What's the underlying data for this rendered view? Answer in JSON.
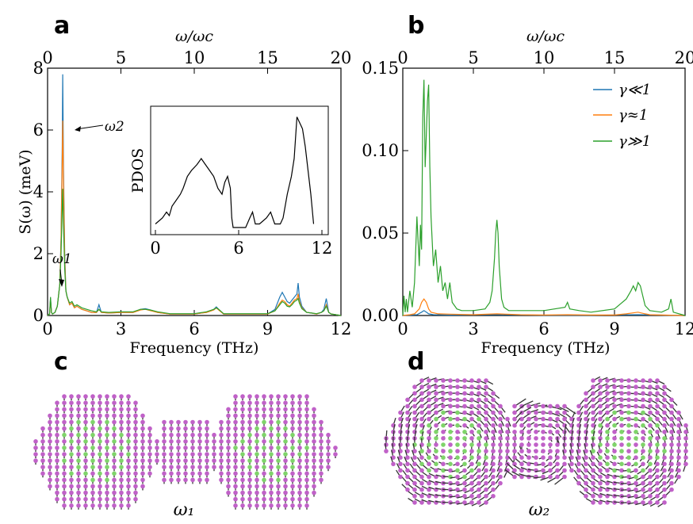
{
  "panels": {
    "a": "a",
    "b": "b",
    "c": "c",
    "d": "d"
  },
  "colors": {
    "gamma_small": "#1f77b4",
    "gamma_one": "#ff7f0e",
    "gamma_large": "#2ca02c",
    "atom_magenta": "#c061c8",
    "atom_green": "#7fd46a",
    "arrow_dark": "#333333"
  },
  "chart_data": [
    {
      "type": "line",
      "panel": "a",
      "xlabel": "Frequency (THz)",
      "ylabel": "S(ω) (meV)",
      "top_xlabel": "ω/ωc",
      "xlim": [
        0,
        12
      ],
      "ylim": [
        0,
        8
      ],
      "xticks": [
        0,
        3,
        6,
        9,
        12
      ],
      "yticks": [
        0,
        2,
        4,
        6,
        8
      ],
      "top_xticks": [
        0,
        5,
        10,
        15,
        20
      ],
      "top_xlim": [
        0,
        20
      ],
      "annotations": [
        {
          "text": "ω2",
          "x": 0.62,
          "y": 6.2
        },
        {
          "text": "ω1",
          "x": 0.12,
          "y": 0.6
        }
      ],
      "series": [
        {
          "name": "γ≪1",
          "x": [
            0,
            0.08,
            0.12,
            0.16,
            0.2,
            0.3,
            0.4,
            0.5,
            0.55,
            0.6,
            0.62,
            0.65,
            0.7,
            0.75,
            0.8,
            0.9,
            1.0,
            1.1,
            1.2,
            1.4,
            1.6,
            1.8,
            2.0,
            2.1,
            2.2,
            2.5,
            3.0,
            3.5,
            3.8,
            4.0,
            4.2,
            4.5,
            5.0,
            5.5,
            6.0,
            6.5,
            6.8,
            6.9,
            7.0,
            7.2,
            7.5,
            8.0,
            8.5,
            9.0,
            9.3,
            9.5,
            9.6,
            9.7,
            9.8,
            9.9,
            10.0,
            10.1,
            10.2,
            10.25,
            10.3,
            10.4,
            10.6,
            10.8,
            11.0,
            11.2,
            11.3,
            11.4,
            11.5,
            11.6,
            12.0
          ],
          "y": [
            0,
            0.05,
            0.55,
            0.1,
            0.05,
            0.1,
            0.3,
            1.0,
            2.5,
            5.5,
            7.8,
            5.0,
            2.0,
            0.8,
            0.6,
            0.35,
            0.4,
            0.25,
            0.3,
            0.2,
            0.15,
            0.1,
            0.1,
            0.35,
            0.1,
            0.08,
            0.1,
            0.1,
            0.2,
            0.22,
            0.18,
            0.1,
            0.05,
            0.05,
            0.05,
            0.1,
            0.2,
            0.28,
            0.2,
            0.05,
            0.05,
            0.05,
            0.05,
            0.05,
            0.2,
            0.6,
            0.75,
            0.6,
            0.45,
            0.4,
            0.5,
            0.6,
            0.7,
            1.05,
            0.6,
            0.3,
            0.1,
            0.08,
            0.05,
            0.1,
            0.2,
            0.55,
            0.1,
            0.05,
            0.0
          ]
        },
        {
          "name": "γ≈1",
          "x": [
            0,
            0.08,
            0.12,
            0.16,
            0.2,
            0.3,
            0.4,
            0.5,
            0.55,
            0.6,
            0.62,
            0.65,
            0.7,
            0.75,
            0.8,
            0.9,
            1.0,
            1.1,
            1.2,
            1.4,
            1.6,
            1.8,
            2.0,
            2.1,
            2.2,
            2.5,
            3.0,
            3.5,
            3.8,
            4.0,
            4.2,
            4.5,
            5.0,
            5.5,
            6.0,
            6.5,
            6.8,
            6.9,
            7.0,
            7.2,
            7.5,
            8.0,
            8.5,
            9.0,
            9.3,
            9.5,
            9.6,
            9.7,
            9.8,
            9.9,
            10.0,
            10.1,
            10.2,
            10.25,
            10.3,
            10.4,
            10.6,
            10.8,
            11.0,
            11.2,
            11.3,
            11.4,
            11.5,
            11.6,
            12.0
          ],
          "y": [
            0,
            0.05,
            0.5,
            0.1,
            0.05,
            0.1,
            0.3,
            1.0,
            2.4,
            5.0,
            6.3,
            4.5,
            1.8,
            0.8,
            0.6,
            0.35,
            0.4,
            0.25,
            0.3,
            0.2,
            0.15,
            0.1,
            0.1,
            0.2,
            0.1,
            0.08,
            0.1,
            0.1,
            0.18,
            0.2,
            0.16,
            0.1,
            0.05,
            0.05,
            0.05,
            0.1,
            0.18,
            0.25,
            0.18,
            0.05,
            0.05,
            0.05,
            0.05,
            0.05,
            0.15,
            0.4,
            0.5,
            0.45,
            0.35,
            0.3,
            0.4,
            0.5,
            0.55,
            0.7,
            0.45,
            0.25,
            0.1,
            0.08,
            0.05,
            0.1,
            0.15,
            0.35,
            0.1,
            0.05,
            0.0
          ]
        },
        {
          "name": "γ≫1",
          "x": [
            0,
            0.08,
            0.12,
            0.16,
            0.2,
            0.3,
            0.4,
            0.5,
            0.55,
            0.6,
            0.62,
            0.65,
            0.7,
            0.75,
            0.8,
            0.9,
            1.0,
            1.1,
            1.2,
            1.4,
            1.6,
            1.8,
            2.0,
            2.1,
            2.2,
            2.5,
            3.0,
            3.5,
            3.8,
            4.0,
            4.2,
            4.5,
            5.0,
            5.5,
            6.0,
            6.5,
            6.8,
            6.9,
            7.0,
            7.2,
            7.5,
            8.0,
            8.5,
            9.0,
            9.3,
            9.5,
            9.6,
            9.7,
            9.8,
            9.9,
            10.0,
            10.1,
            10.2,
            10.25,
            10.3,
            10.4,
            10.6,
            10.8,
            11.0,
            11.2,
            11.3,
            11.4,
            11.5,
            11.6,
            12.0
          ],
          "y": [
            0,
            0.05,
            0.6,
            0.1,
            0.05,
            0.1,
            0.3,
            1.0,
            2.0,
            3.5,
            4.1,
            3.0,
            1.5,
            0.8,
            0.6,
            0.4,
            0.45,
            0.3,
            0.35,
            0.25,
            0.2,
            0.15,
            0.12,
            0.2,
            0.12,
            0.1,
            0.12,
            0.12,
            0.2,
            0.2,
            0.18,
            0.12,
            0.06,
            0.06,
            0.06,
            0.12,
            0.2,
            0.25,
            0.2,
            0.06,
            0.06,
            0.06,
            0.06,
            0.06,
            0.15,
            0.35,
            0.45,
            0.4,
            0.3,
            0.28,
            0.35,
            0.45,
            0.5,
            0.55,
            0.4,
            0.22,
            0.1,
            0.08,
            0.06,
            0.1,
            0.15,
            0.3,
            0.1,
            0.05,
            0.0
          ]
        }
      ],
      "inset": {
        "ylabel": "PDOS",
        "xticks": [
          0,
          6,
          12
        ],
        "xlim": [
          0,
          12
        ],
        "x": [
          0,
          0.5,
          0.8,
          1.0,
          1.2,
          1.5,
          1.8,
          2.0,
          2.3,
          2.6,
          3.0,
          3.3,
          3.6,
          3.9,
          4.2,
          4.5,
          4.8,
          5.0,
          5.2,
          5.4,
          5.5,
          5.6,
          6.0,
          6.5,
          6.8,
          7.0,
          7.2,
          7.5,
          8.0,
          8.3,
          8.6,
          8.8,
          9.0,
          9.2,
          9.5,
          9.8,
          10.0,
          10.2,
          10.4,
          10.6,
          10.8,
          11.0,
          11.2,
          11.4
        ],
        "y": [
          0.05,
          0.1,
          0.15,
          0.12,
          0.2,
          0.25,
          0.3,
          0.35,
          0.45,
          0.5,
          0.55,
          0.6,
          0.55,
          0.5,
          0.45,
          0.35,
          0.3,
          0.4,
          0.45,
          0.35,
          0.1,
          0.02,
          0.02,
          0.02,
          0.1,
          0.15,
          0.05,
          0.05,
          0.1,
          0.15,
          0.05,
          0.05,
          0.05,
          0.1,
          0.3,
          0.45,
          0.6,
          0.95,
          0.9,
          0.85,
          0.7,
          0.5,
          0.3,
          0.05
        ]
      }
    },
    {
      "type": "line",
      "panel": "b",
      "xlabel": "Frequency (THz)",
      "top_xlabel": "ω/ωc",
      "xlim": [
        0,
        12
      ],
      "ylim": [
        0,
        0.15
      ],
      "xticks": [
        0,
        3,
        6,
        9,
        12
      ],
      "yticks": [
        0.0,
        0.05,
        0.1,
        0.15
      ],
      "ytick_labels": [
        "0.00",
        "0.05",
        "0.10",
        "0.15"
      ],
      "top_xticks": [
        0,
        5,
        10,
        15,
        20
      ],
      "top_xlim": [
        0,
        20
      ],
      "legend": "top-right",
      "series": [
        {
          "name": "γ≪1",
          "x": [
            0,
            0.6,
            0.8,
            0.9,
            1.0,
            1.1,
            1.3,
            2.0,
            4.0,
            6.0,
            8.0,
            10.0,
            12.0
          ],
          "y": [
            0,
            0.0005,
            0.002,
            0.003,
            0.002,
            0.001,
            0.0005,
            0.0003,
            0.0005,
            0.0002,
            0.0002,
            0.0005,
            0.0
          ]
        },
        {
          "name": "γ≈1",
          "x": [
            0,
            0.3,
            0.5,
            0.7,
            0.8,
            0.9,
            1.0,
            1.1,
            1.2,
            1.5,
            2.0,
            3.0,
            4.0,
            5.0,
            6.0,
            7.0,
            8.0,
            9.0,
            9.5,
            10.0,
            10.3,
            10.5,
            11.0,
            12.0
          ],
          "y": [
            0,
            0.0005,
            0.001,
            0.004,
            0.008,
            0.01,
            0.008,
            0.004,
            0.002,
            0.001,
            0.0008,
            0.0005,
            0.001,
            0.0005,
            0.0003,
            0.0005,
            0.0003,
            0.0003,
            0.001,
            0.002,
            0.001,
            0.0005,
            0.0003,
            0.0
          ]
        },
        {
          "name": "γ≫1",
          "x": [
            0,
            0.05,
            0.1,
            0.15,
            0.2,
            0.3,
            0.4,
            0.5,
            0.6,
            0.7,
            0.75,
            0.8,
            0.85,
            0.9,
            0.95,
            1.0,
            1.05,
            1.1,
            1.15,
            1.2,
            1.3,
            1.4,
            1.5,
            1.6,
            1.7,
            1.8,
            1.9,
            2.0,
            2.1,
            2.3,
            2.5,
            3.0,
            3.5,
            3.7,
            3.8,
            3.9,
            3.95,
            4.0,
            4.05,
            4.1,
            4.2,
            4.3,
            4.5,
            5.0,
            6.0,
            6.9,
            7.0,
            7.1,
            7.5,
            8.0,
            9.0,
            9.5,
            9.7,
            9.8,
            9.9,
            10.0,
            10.1,
            10.2,
            10.3,
            10.5,
            11.0,
            11.3,
            11.4,
            11.5,
            12.0
          ],
          "y": [
            0,
            0.012,
            0.002,
            0.01,
            0.002,
            0.015,
            0.005,
            0.02,
            0.06,
            0.03,
            0.055,
            0.04,
            0.12,
            0.143,
            0.09,
            0.11,
            0.13,
            0.14,
            0.09,
            0.06,
            0.03,
            0.04,
            0.02,
            0.03,
            0.015,
            0.02,
            0.01,
            0.02,
            0.008,
            0.004,
            0.003,
            0.003,
            0.004,
            0.008,
            0.015,
            0.035,
            0.05,
            0.058,
            0.05,
            0.03,
            0.01,
            0.005,
            0.003,
            0.003,
            0.003,
            0.005,
            0.008,
            0.004,
            0.003,
            0.002,
            0.004,
            0.01,
            0.015,
            0.018,
            0.015,
            0.02,
            0.018,
            0.012,
            0.006,
            0.003,
            0.002,
            0.004,
            0.01,
            0.002,
            0.0
          ]
        }
      ]
    }
  ],
  "structures": {
    "c_label": "ω₁",
    "d_label": "ω₂"
  }
}
